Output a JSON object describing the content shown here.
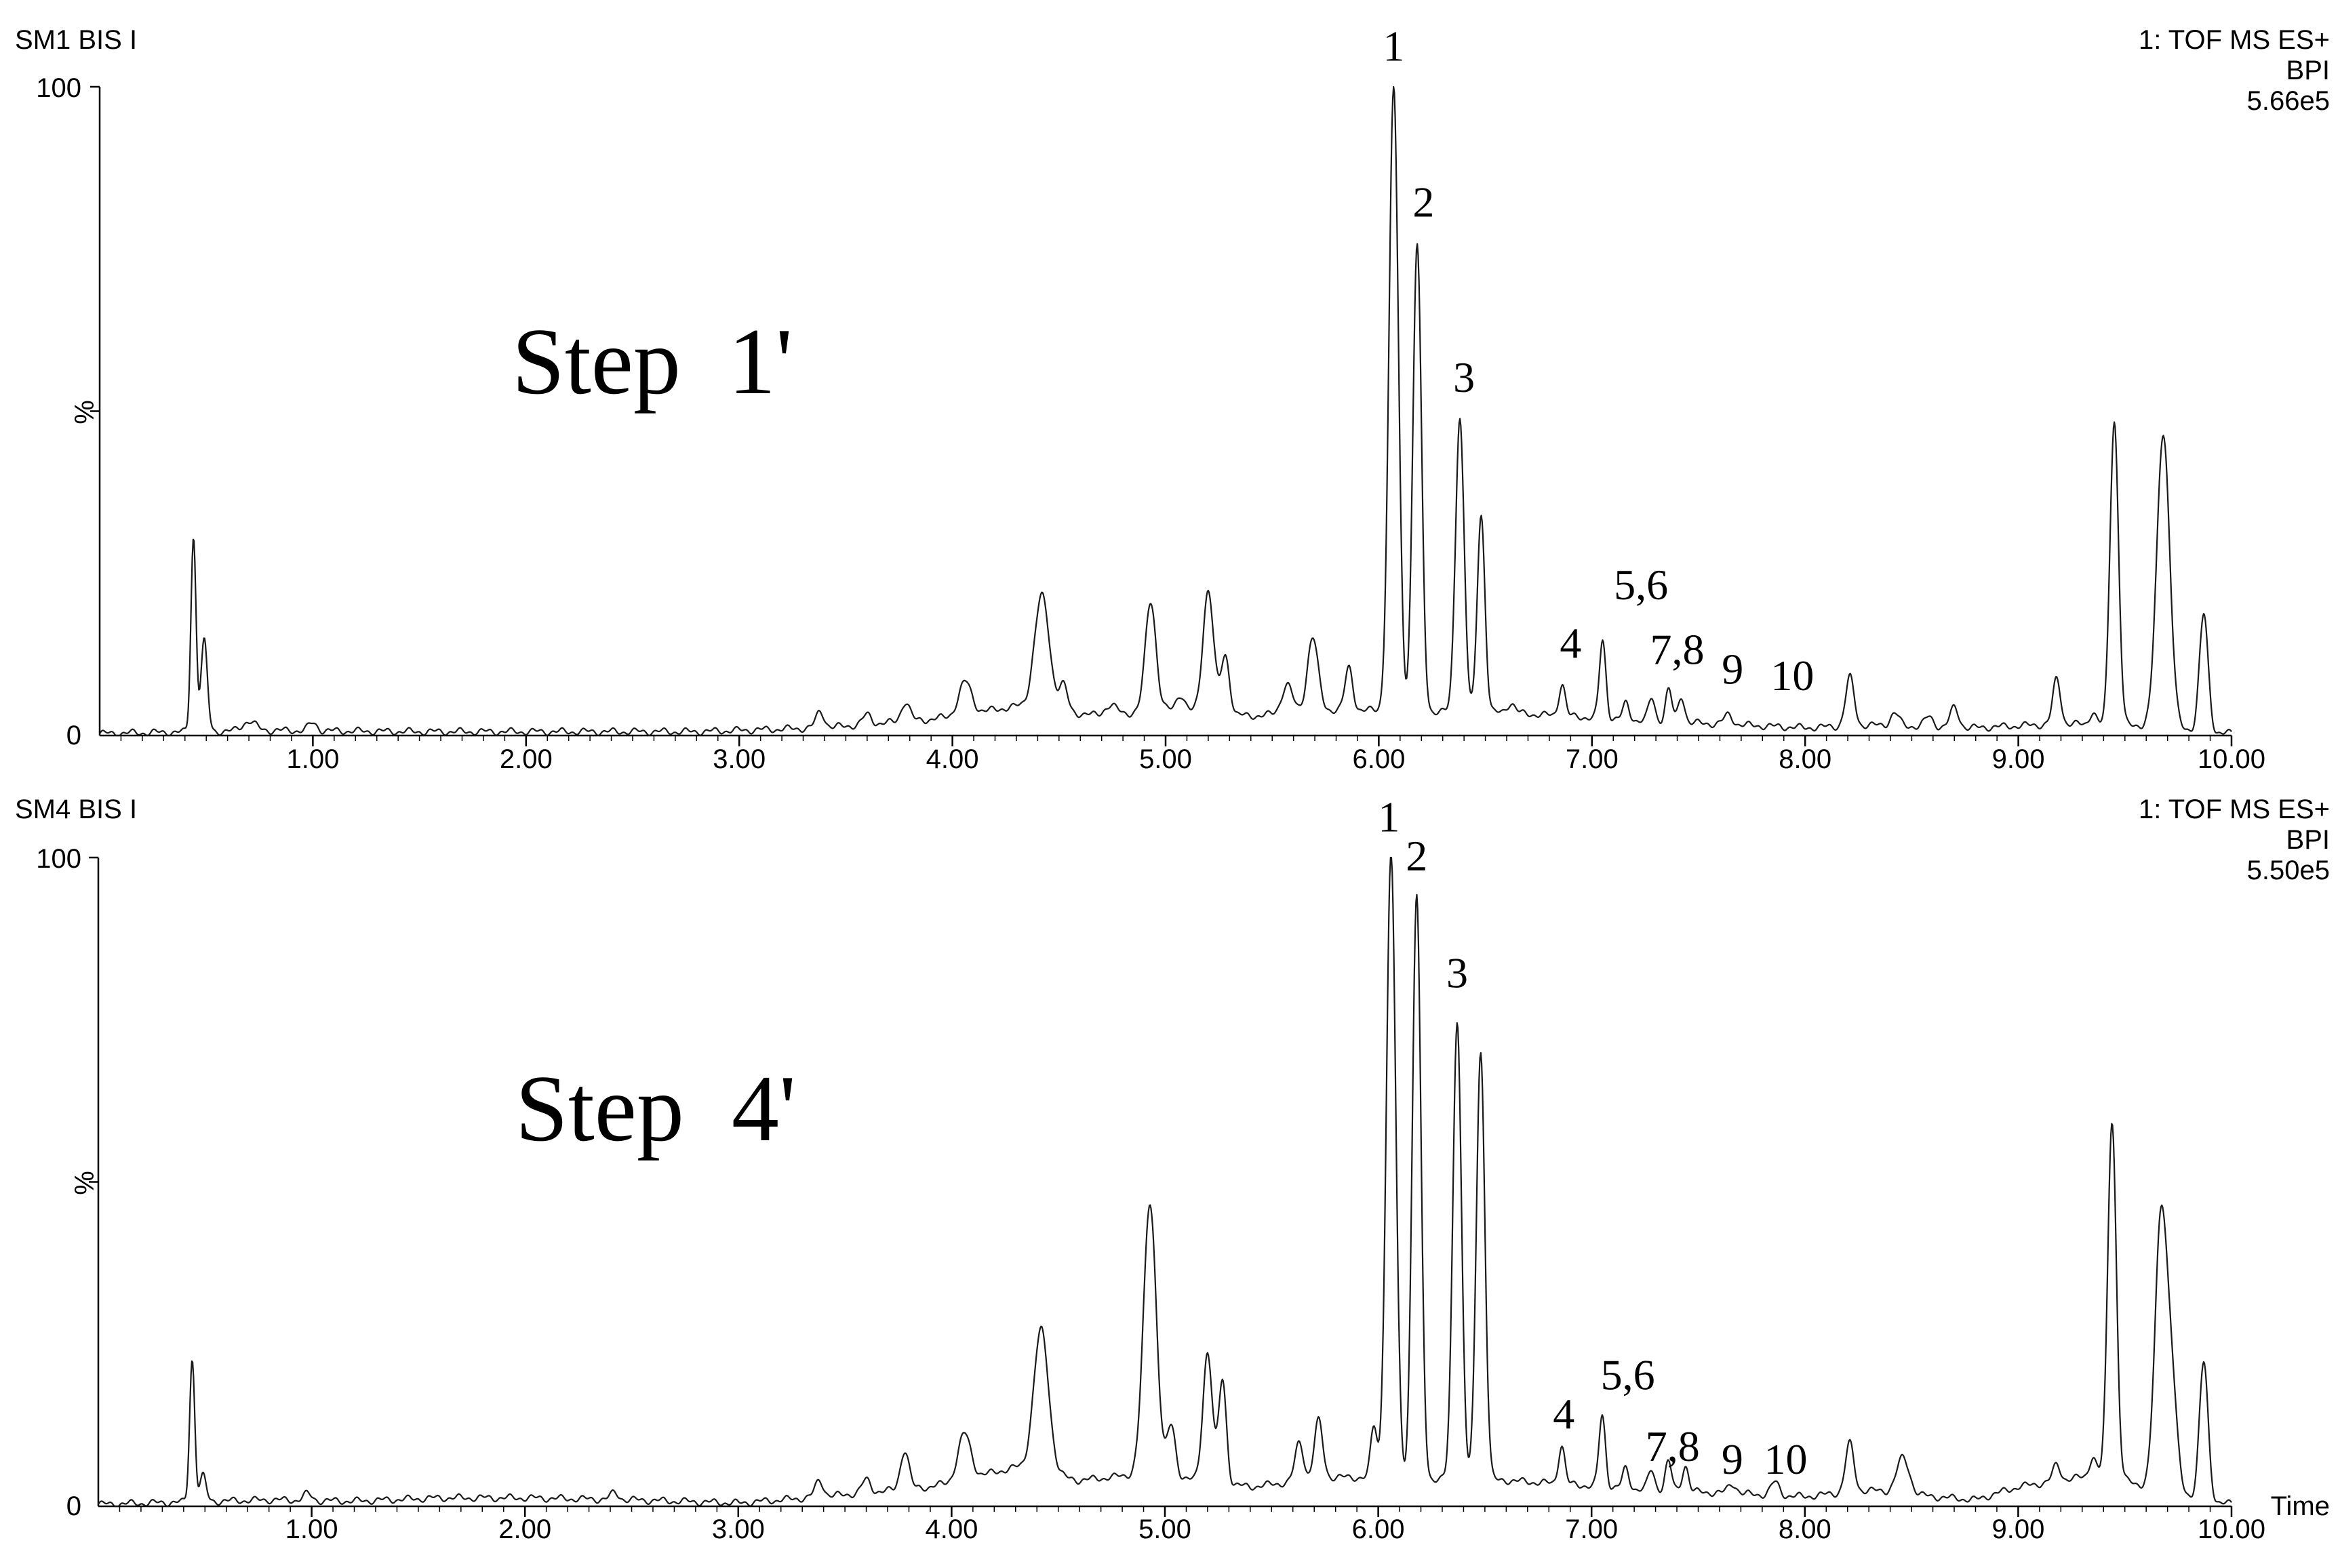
{
  "chart_data": [
    {
      "type": "line",
      "trace_name": "SM1 BIS I",
      "info_lines": [
        "1: TOF MS ES+",
        "BPI",
        "5.66e5"
      ],
      "step_label": "Step  1'",
      "y_top_tick": "100",
      "y_bottom_tick": "0",
      "ylabel": "%",
      "xlabel": "",
      "xlim": [
        0,
        10
      ],
      "ylim": [
        0,
        100
      ],
      "x_ticks": [
        "1.00",
        "2.00",
        "3.00",
        "4.00",
        "5.00",
        "6.00",
        "7.00",
        "8.00",
        "9.00",
        "10.00"
      ],
      "baseline_points": [
        [
          0.0,
          0.3
        ],
        [
          0.8,
          0.8
        ],
        [
          1.5,
          0.6
        ],
        [
          2.0,
          0.6
        ],
        [
          2.8,
          0.6
        ],
        [
          3.4,
          1.2
        ],
        [
          3.9,
          2.5
        ],
        [
          4.3,
          4.5
        ],
        [
          4.7,
          3.0
        ],
        [
          5.0,
          4.0
        ],
        [
          5.4,
          3.0
        ],
        [
          5.8,
          4.0
        ],
        [
          6.6,
          3.5
        ],
        [
          7.3,
          2.2
        ],
        [
          8.0,
          1.2
        ],
        [
          8.3,
          1.6
        ],
        [
          8.8,
          1.2
        ],
        [
          9.2,
          1.8
        ],
        [
          9.6,
          1.5
        ],
        [
          10.0,
          0.3
        ]
      ],
      "peaks": [
        {
          "x": 0.44,
          "y": 30,
          "w": 0.012
        },
        {
          "x": 0.49,
          "y": 14,
          "w": 0.015
        },
        {
          "x": 0.7,
          "y": 1.5,
          "w": 0.03
        },
        {
          "x": 1.0,
          "y": 1.2,
          "w": 0.02
        },
        {
          "x": 3.38,
          "y": 2.5,
          "w": 0.02
        },
        {
          "x": 3.6,
          "y": 1.5,
          "w": 0.02
        },
        {
          "x": 3.78,
          "y": 3.0,
          "w": 0.02
        },
        {
          "x": 4.06,
          "y": 5.0,
          "w": 0.03
        },
        {
          "x": 4.42,
          "y": 17.5,
          "w": 0.035
        },
        {
          "x": 4.52,
          "y": 4.0,
          "w": 0.02
        },
        {
          "x": 4.74,
          "y": 1.5,
          "w": 0.03
        },
        {
          "x": 4.93,
          "y": 17.0,
          "w": 0.025
        },
        {
          "x": 5.07,
          "y": 2.5,
          "w": 0.02
        },
        {
          "x": 5.2,
          "y": 19.0,
          "w": 0.025
        },
        {
          "x": 5.28,
          "y": 9.0,
          "w": 0.02
        },
        {
          "x": 5.57,
          "y": 4.5,
          "w": 0.025
        },
        {
          "x": 5.69,
          "y": 11.5,
          "w": 0.025
        },
        {
          "x": 5.86,
          "y": 6.5,
          "w": 0.018
        },
        {
          "x": 6.07,
          "y": 96.0,
          "w": 0.022
        },
        {
          "x": 6.18,
          "y": 72.0,
          "w": 0.02
        },
        {
          "x": 6.38,
          "y": 45.5,
          "w": 0.02
        },
        {
          "x": 6.48,
          "y": 30.5,
          "w": 0.018
        },
        {
          "x": 6.62,
          "y": 1.5,
          "w": 0.02
        },
        {
          "x": 6.86,
          "y": 5.0,
          "w": 0.015
        },
        {
          "x": 7.05,
          "y": 12.0,
          "w": 0.015
        },
        {
          "x": 7.16,
          "y": 2.5,
          "w": 0.015
        },
        {
          "x": 7.28,
          "y": 3.5,
          "w": 0.015
        },
        {
          "x": 7.36,
          "y": 5.0,
          "w": 0.015
        },
        {
          "x": 7.42,
          "y": 4.0,
          "w": 0.015
        },
        {
          "x": 7.64,
          "y": 1.5,
          "w": 0.02
        },
        {
          "x": 8.21,
          "y": 7.5,
          "w": 0.02
        },
        {
          "x": 8.42,
          "y": 2.0,
          "w": 0.02
        },
        {
          "x": 8.58,
          "y": 1.5,
          "w": 0.02
        },
        {
          "x": 8.7,
          "y": 3.0,
          "w": 0.02
        },
        {
          "x": 9.18,
          "y": 7.0,
          "w": 0.018
        },
        {
          "x": 9.35,
          "y": 2.0,
          "w": 0.015
        },
        {
          "x": 9.45,
          "y": 47.0,
          "w": 0.02
        },
        {
          "x": 9.68,
          "y": 45.5,
          "w": 0.03
        },
        {
          "x": 9.87,
          "y": 18.0,
          "w": 0.02
        }
      ],
      "peak_labels": [
        {
          "text": "1",
          "x": 6.07,
          "y": 104
        },
        {
          "text": "2",
          "x": 6.21,
          "y": 80
        },
        {
          "text": "3",
          "x": 6.4,
          "y": 53
        },
        {
          "text": "4",
          "x": 6.9,
          "y": 12
        },
        {
          "text": "5,6",
          "x": 7.23,
          "y": 21
        },
        {
          "text": "7,8",
          "x": 7.4,
          "y": 11
        },
        {
          "text": "9",
          "x": 7.66,
          "y": 8
        },
        {
          "text": "10",
          "x": 7.94,
          "y": 7
        }
      ]
    },
    {
      "type": "line",
      "trace_name": "SM4 BIS I",
      "info_lines": [
        "1: TOF MS ES+",
        "BPI",
        "5.50e5"
      ],
      "step_label": "Step  4'",
      "y_top_tick": "100",
      "y_bottom_tick": "0",
      "ylabel": "%",
      "xlabel": "Time",
      "xlim": [
        0,
        10
      ],
      "ylim": [
        0,
        100
      ],
      "x_ticks": [
        "1.00",
        "2.00",
        "3.00",
        "4.00",
        "5.00",
        "6.00",
        "7.00",
        "8.00",
        "9.00",
        "10.00"
      ],
      "baseline_points": [
        [
          0.0,
          0.3
        ],
        [
          0.8,
          1.0
        ],
        [
          1.2,
          0.8
        ],
        [
          1.6,
          1.3
        ],
        [
          2.0,
          1.3
        ],
        [
          2.5,
          1.0
        ],
        [
          3.0,
          0.5
        ],
        [
          3.4,
          1.5
        ],
        [
          3.9,
          3.0
        ],
        [
          4.3,
          6.0
        ],
        [
          4.6,
          4.0
        ],
        [
          4.9,
          5.0
        ],
        [
          5.4,
          3.0
        ],
        [
          5.8,
          4.5
        ],
        [
          6.6,
          4.0
        ],
        [
          7.3,
          2.5
        ],
        [
          8.0,
          1.5
        ],
        [
          8.3,
          2.5
        ],
        [
          8.6,
          1.5
        ],
        [
          8.8,
          1.0
        ],
        [
          9.0,
          3.0
        ],
        [
          9.4,
          5.0
        ],
        [
          9.6,
          3.0
        ],
        [
          10.0,
          0.3
        ]
      ],
      "peaks": [
        {
          "x": 0.44,
          "y": 22,
          "w": 0.012
        },
        {
          "x": 0.49,
          "y": 4,
          "w": 0.015
        },
        {
          "x": 0.98,
          "y": 1.0,
          "w": 0.02
        },
        {
          "x": 2.42,
          "y": 1.0,
          "w": 0.02
        },
        {
          "x": 3.38,
          "y": 2.5,
          "w": 0.02
        },
        {
          "x": 3.6,
          "y": 2.0,
          "w": 0.02
        },
        {
          "x": 3.78,
          "y": 6.0,
          "w": 0.02
        },
        {
          "x": 4.06,
          "y": 7.0,
          "w": 0.03
        },
        {
          "x": 4.42,
          "y": 22.0,
          "w": 0.035
        },
        {
          "x": 4.93,
          "y": 42.0,
          "w": 0.03
        },
        {
          "x": 5.03,
          "y": 8.0,
          "w": 0.02
        },
        {
          "x": 5.2,
          "y": 20.0,
          "w": 0.022
        },
        {
          "x": 5.27,
          "y": 16.0,
          "w": 0.018
        },
        {
          "x": 5.63,
          "y": 6.0,
          "w": 0.02
        },
        {
          "x": 5.72,
          "y": 9.0,
          "w": 0.02
        },
        {
          "x": 5.98,
          "y": 8.0,
          "w": 0.015
        },
        {
          "x": 6.06,
          "y": 96.0,
          "w": 0.022
        },
        {
          "x": 6.18,
          "y": 90.0,
          "w": 0.02
        },
        {
          "x": 6.37,
          "y": 71.0,
          "w": 0.02
        },
        {
          "x": 6.48,
          "y": 66.0,
          "w": 0.02
        },
        {
          "x": 6.86,
          "y": 6.0,
          "w": 0.015
        },
        {
          "x": 7.05,
          "y": 11.0,
          "w": 0.015
        },
        {
          "x": 7.16,
          "y": 3.0,
          "w": 0.015
        },
        {
          "x": 7.28,
          "y": 3.0,
          "w": 0.015
        },
        {
          "x": 7.36,
          "y": 4.5,
          "w": 0.015
        },
        {
          "x": 7.44,
          "y": 4.0,
          "w": 0.015
        },
        {
          "x": 7.66,
          "y": 1.5,
          "w": 0.02
        },
        {
          "x": 7.86,
          "y": 2.0,
          "w": 0.02
        },
        {
          "x": 8.21,
          "y": 7.5,
          "w": 0.02
        },
        {
          "x": 8.46,
          "y": 5.5,
          "w": 0.03
        },
        {
          "x": 9.18,
          "y": 2.5,
          "w": 0.018
        },
        {
          "x": 9.35,
          "y": 3.0,
          "w": 0.015
        },
        {
          "x": 9.44,
          "y": 55.0,
          "w": 0.02
        },
        {
          "x": 9.67,
          "y": 42.0,
          "w": 0.028
        },
        {
          "x": 9.72,
          "y": 15.0,
          "w": 0.025
        },
        {
          "x": 9.87,
          "y": 21.0,
          "w": 0.02
        }
      ],
      "peak_labels": [
        {
          "text": "1",
          "x": 6.05,
          "y": 104
        },
        {
          "text": "2",
          "x": 6.18,
          "y": 98
        },
        {
          "text": "3",
          "x": 6.37,
          "y": 80
        },
        {
          "text": "4",
          "x": 6.87,
          "y": 12
        },
        {
          "text": "5,6",
          "x": 7.17,
          "y": 18
        },
        {
          "text": "7,8",
          "x": 7.38,
          "y": 7
        },
        {
          "text": "9",
          "x": 7.66,
          "y": 5
        },
        {
          "text": "10",
          "x": 7.91,
          "y": 5
        }
      ]
    }
  ]
}
